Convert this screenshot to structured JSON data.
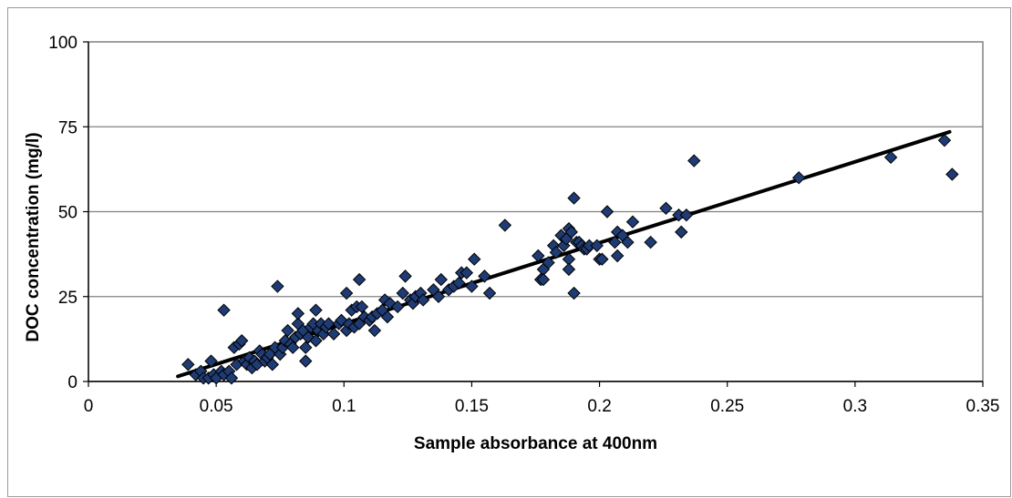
{
  "chart_data": {
    "type": "scatter",
    "title": "",
    "xlabel": "Sample absorbance at 400nm",
    "ylabel": "DOC concentration (mg/l)",
    "xlim": [
      0,
      0.35
    ],
    "ylim": [
      0,
      100
    ],
    "x_ticks": [
      0,
      0.05,
      0.1,
      0.15,
      0.2,
      0.25,
      0.3,
      0.35
    ],
    "x_tick_labels": [
      "0",
      "0.05",
      "0.1",
      "0.15",
      "0.2",
      "0.25",
      "0.3",
      "0.35"
    ],
    "y_ticks": [
      0,
      25,
      50,
      75,
      100
    ],
    "y_tick_labels": [
      "0",
      "25",
      "50",
      "75",
      "100"
    ],
    "grid": "horizontal",
    "legend": "none",
    "colors": {
      "marker_fill": "#1f3b73",
      "marker_stroke": "#000000",
      "trendline": "#000000",
      "gridline": "#808080",
      "plot_border": "#808080"
    },
    "marker": "diamond",
    "trendline": {
      "type": "linear",
      "x": [
        0.035,
        0.337
      ],
      "y": [
        1.5,
        73.5
      ]
    },
    "points": [
      [
        0.039,
        5
      ],
      [
        0.042,
        2
      ],
      [
        0.044,
        3
      ],
      [
        0.045,
        1
      ],
      [
        0.047,
        1
      ],
      [
        0.048,
        6
      ],
      [
        0.049,
        2
      ],
      [
        0.05,
        1
      ],
      [
        0.052,
        3
      ],
      [
        0.053,
        21
      ],
      [
        0.053,
        2
      ],
      [
        0.055,
        3
      ],
      [
        0.056,
        1
      ],
      [
        0.057,
        10
      ],
      [
        0.058,
        5
      ],
      [
        0.059,
        11
      ],
      [
        0.06,
        12
      ],
      [
        0.061,
        6
      ],
      [
        0.062,
        5
      ],
      [
        0.063,
        7
      ],
      [
        0.064,
        4
      ],
      [
        0.065,
        6
      ],
      [
        0.066,
        5
      ],
      [
        0.067,
        9
      ],
      [
        0.068,
        8
      ],
      [
        0.069,
        6
      ],
      [
        0.07,
        7
      ],
      [
        0.071,
        8
      ],
      [
        0.072,
        5
      ],
      [
        0.073,
        10
      ],
      [
        0.074,
        28
      ],
      [
        0.075,
        8
      ],
      [
        0.076,
        10
      ],
      [
        0.077,
        12
      ],
      [
        0.078,
        15
      ],
      [
        0.079,
        11
      ],
      [
        0.08,
        10
      ],
      [
        0.081,
        13
      ],
      [
        0.082,
        17
      ],
      [
        0.082,
        20
      ],
      [
        0.083,
        14
      ],
      [
        0.084,
        15
      ],
      [
        0.085,
        6
      ],
      [
        0.085,
        10
      ],
      [
        0.086,
        13
      ],
      [
        0.087,
        16
      ],
      [
        0.088,
        17
      ],
      [
        0.089,
        12
      ],
      [
        0.089,
        21
      ],
      [
        0.09,
        15
      ],
      [
        0.091,
        17
      ],
      [
        0.092,
        14
      ],
      [
        0.093,
        16
      ],
      [
        0.094,
        17
      ],
      [
        0.096,
        14
      ],
      [
        0.098,
        17
      ],
      [
        0.099,
        18
      ],
      [
        0.101,
        15
      ],
      [
        0.101,
        26
      ],
      [
        0.102,
        17
      ],
      [
        0.103,
        21
      ],
      [
        0.104,
        16
      ],
      [
        0.105,
        22
      ],
      [
        0.106,
        30
      ],
      [
        0.106,
        17
      ],
      [
        0.107,
        22
      ],
      [
        0.108,
        19
      ],
      [
        0.11,
        18
      ],
      [
        0.111,
        19
      ],
      [
        0.112,
        15
      ],
      [
        0.113,
        20
      ],
      [
        0.115,
        21
      ],
      [
        0.116,
        24
      ],
      [
        0.117,
        19
      ],
      [
        0.118,
        23
      ],
      [
        0.121,
        22
      ],
      [
        0.123,
        26
      ],
      [
        0.124,
        31
      ],
      [
        0.126,
        24
      ],
      [
        0.127,
        23
      ],
      [
        0.128,
        25
      ],
      [
        0.13,
        26
      ],
      [
        0.131,
        24
      ],
      [
        0.135,
        27
      ],
      [
        0.137,
        25
      ],
      [
        0.138,
        30
      ],
      [
        0.141,
        27
      ],
      [
        0.143,
        28
      ],
      [
        0.145,
        29
      ],
      [
        0.146,
        32
      ],
      [
        0.148,
        32
      ],
      [
        0.15,
        28
      ],
      [
        0.151,
        36
      ],
      [
        0.155,
        31
      ],
      [
        0.157,
        26
      ],
      [
        0.163,
        46
      ],
      [
        0.176,
        37
      ],
      [
        0.177,
        30
      ],
      [
        0.178,
        33
      ],
      [
        0.178,
        30
      ],
      [
        0.18,
        35
      ],
      [
        0.182,
        40
      ],
      [
        0.183,
        38
      ],
      [
        0.185,
        43
      ],
      [
        0.186,
        40
      ],
      [
        0.187,
        42
      ],
      [
        0.188,
        45
      ],
      [
        0.188,
        36
      ],
      [
        0.188,
        33
      ],
      [
        0.189,
        44
      ],
      [
        0.19,
        54
      ],
      [
        0.19,
        26
      ],
      [
        0.191,
        41
      ],
      [
        0.192,
        41
      ],
      [
        0.193,
        40
      ],
      [
        0.194,
        39
      ],
      [
        0.195,
        39
      ],
      [
        0.196,
        40
      ],
      [
        0.199,
        40
      ],
      [
        0.2,
        36
      ],
      [
        0.201,
        36
      ],
      [
        0.203,
        50
      ],
      [
        0.206,
        41
      ],
      [
        0.207,
        44
      ],
      [
        0.207,
        37
      ],
      [
        0.209,
        43
      ],
      [
        0.211,
        41
      ],
      [
        0.213,
        47
      ],
      [
        0.22,
        41
      ],
      [
        0.226,
        51
      ],
      [
        0.231,
        49
      ],
      [
        0.232,
        44
      ],
      [
        0.234,
        49
      ],
      [
        0.237,
        65
      ],
      [
        0.278,
        60
      ],
      [
        0.314,
        66
      ],
      [
        0.335,
        71
      ],
      [
        0.338,
        61
      ]
    ]
  }
}
